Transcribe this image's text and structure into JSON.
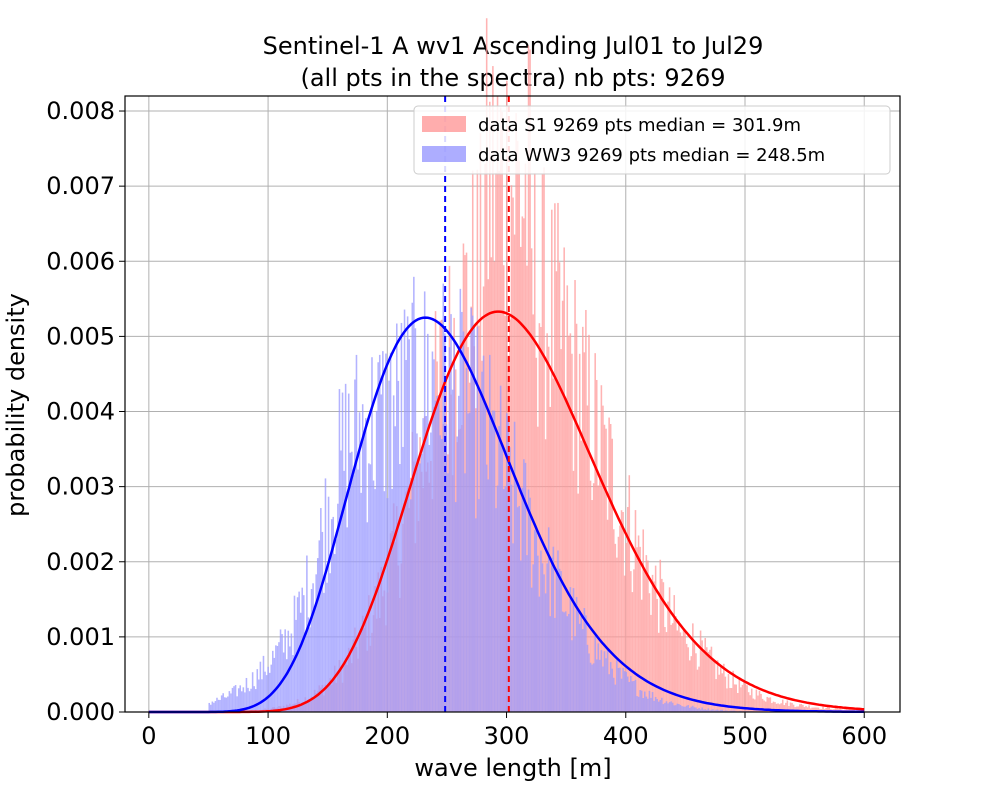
{
  "chart_data": {
    "type": "bar",
    "title_line1": "Sentinel-1 A wv1 Ascending Jul01 to Jul29",
    "title_line2": "(all pts in the spectra) nb pts: 9269",
    "xlabel": "wave length [m]",
    "ylabel": "probability density",
    "xlim": [
      -20,
      630
    ],
    "ylim": [
      0,
      0.0082
    ],
    "xticks": [
      0,
      100,
      200,
      300,
      400,
      500,
      600
    ],
    "yticks": [
      0.0,
      0.001,
      0.002,
      0.003,
      0.004,
      0.005,
      0.006,
      0.007,
      0.008
    ],
    "xtick_labels": [
      "0",
      "100",
      "200",
      "300",
      "400",
      "500",
      "600"
    ],
    "ytick_labels": [
      "0.000",
      "0.001",
      "0.002",
      "0.003",
      "0.004",
      "0.005",
      "0.006",
      "0.007",
      "0.008"
    ],
    "grid": true,
    "legend_position": "upper-right",
    "colors": {
      "s1_hist": "#ff9999",
      "ww3_hist": "#9999ff",
      "s1_line": "#ff0000",
      "ww3_line": "#0000ff"
    },
    "series": [
      {
        "name": "data S1 9269 pts median = 301.9m",
        "kind": "histogram",
        "median": 301.9,
        "approx_fit": {
          "mean": 293,
          "std": 75,
          "peak": 0.00533
        },
        "bin_width": 1.3,
        "bin_range": [
          50,
          600
        ]
      },
      {
        "name": "data WW3 9269 pts median = 248.5m",
        "kind": "histogram",
        "median": 248.5,
        "approx_fit": {
          "mean": 232,
          "std": 60,
          "peak": 0.00525
        },
        "bin_width": 1.3,
        "bin_range": [
          50,
          600
        ]
      }
    ],
    "fit_curves": [
      {
        "color_key": "s1_line",
        "kind": "gamma-like",
        "peak_x": 293,
        "peak_y": 0.00533
      },
      {
        "color_key": "ww3_line",
        "kind": "gamma-like",
        "peak_x": 232,
        "peak_y": 0.00525
      }
    ],
    "median_lines": [
      {
        "x": 301.9,
        "color_key": "s1_line",
        "style": "dashed"
      },
      {
        "x": 248.5,
        "color_key": "ww3_line",
        "style": "dashed"
      }
    ]
  }
}
